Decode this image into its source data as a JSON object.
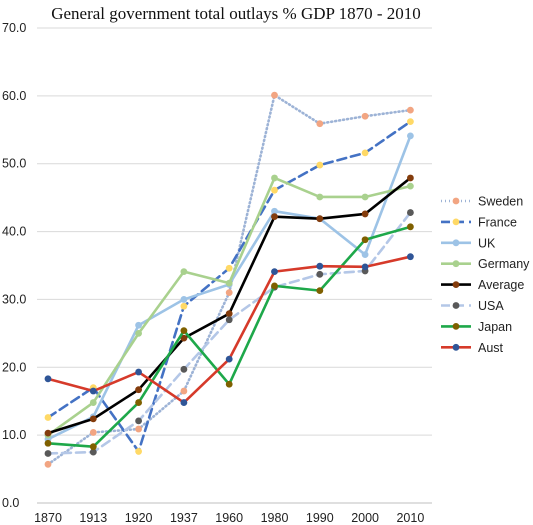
{
  "chart_data": {
    "type": "line",
    "title": "General government total outlays % GDP 1870 - 2010",
    "xlabel": "",
    "ylabel": "",
    "categories": [
      "1870",
      "1913",
      "1920",
      "1937",
      "1960",
      "1980",
      "1990",
      "2000",
      "2010"
    ],
    "ylim": [
      0,
      70
    ],
    "yticks": [
      "0.0",
      "10.0",
      "20.0",
      "30.0",
      "40.0",
      "50.0",
      "60.0",
      "70.0"
    ],
    "grid": "horizontal",
    "legend_position": "right",
    "series": [
      {
        "name": "Sweden",
        "values": [
          5.7,
          10.4,
          10.9,
          16.5,
          31.0,
          60.1,
          55.9,
          57.0,
          57.9
        ],
        "color": "#9db3d6",
        "marker_color": "#f2a582",
        "dash": "1,3"
      },
      {
        "name": "France",
        "values": [
          12.6,
          17.0,
          7.6,
          29.0,
          34.6,
          46.1,
          49.8,
          51.6,
          56.2
        ],
        "color": "#4472c4",
        "marker_color": "#ffd966",
        "dash": "9,5"
      },
      {
        "name": "UK",
        "values": [
          9.4,
          12.7,
          26.2,
          30.0,
          32.2,
          43.0,
          41.9,
          36.6,
          54.1
        ],
        "color": "#9dc3e6",
        "marker_color": "#9dc3e6",
        "dash": ""
      },
      {
        "name": "Germany",
        "values": [
          10.0,
          14.8,
          25.0,
          34.1,
          32.4,
          47.9,
          45.1,
          45.1,
          46.7
        ],
        "color": "#a9d18e",
        "marker_color": "#a9d18e",
        "dash": ""
      },
      {
        "name": "Average",
        "values": [
          10.3,
          12.4,
          16.7,
          24.3,
          27.9,
          42.2,
          41.9,
          42.6,
          47.9
        ],
        "color": "#000000",
        "marker_color": "#843c0c",
        "dash": ""
      },
      {
        "name": "USA",
        "values": [
          7.3,
          7.5,
          12.1,
          19.7,
          27.0,
          31.8,
          33.7,
          34.2,
          42.8
        ],
        "color": "#b4c7e7",
        "marker_color": "#595959",
        "dash": "9,5"
      },
      {
        "name": "Japan",
        "values": [
          8.8,
          8.3,
          14.8,
          25.4,
          17.5,
          32.0,
          31.3,
          38.8,
          40.7
        ],
        "color": "#1ea84a",
        "marker_color": "#7f6000",
        "dash": ""
      },
      {
        "name": "Aust",
        "values": [
          18.3,
          16.5,
          19.3,
          14.8,
          21.2,
          34.1,
          34.9,
          34.8,
          36.3
        ],
        "color": "#d63a2a",
        "marker_color": "#2f5597",
        "dash": ""
      }
    ]
  }
}
